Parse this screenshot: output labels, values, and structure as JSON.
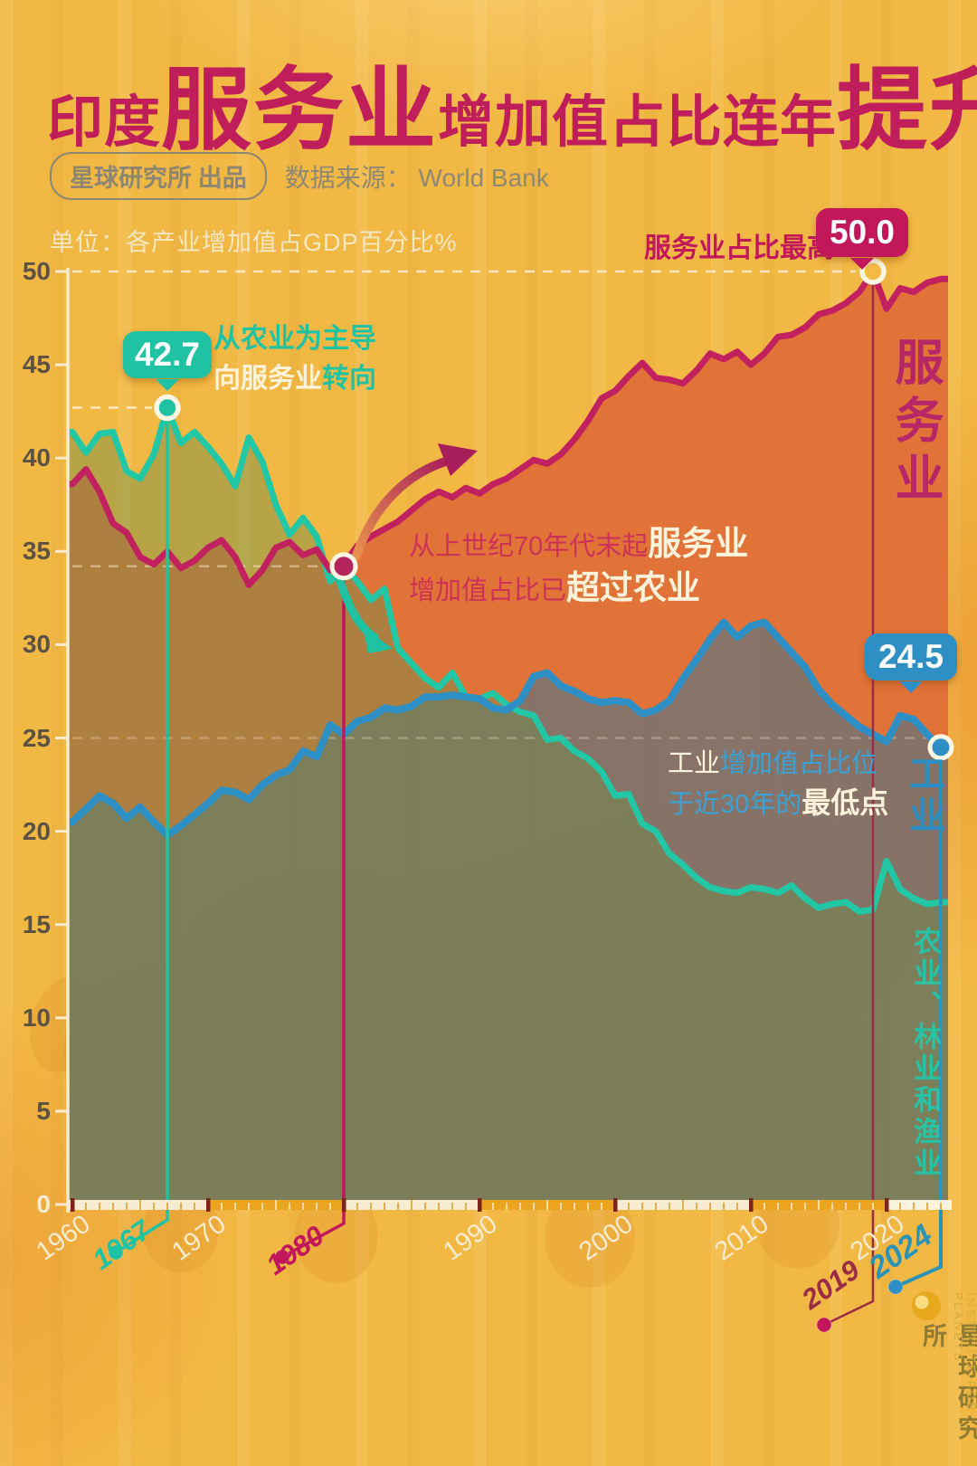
{
  "title": {
    "part1": "印度",
    "part2": "服务业",
    "part3": "增加值占比连年",
    "part4": "提升"
  },
  "header": {
    "badge": "星球研究所 出品",
    "source": "数据来源： World Bank"
  },
  "unit_label": "单位：各产业增加值占GDP百分比%",
  "colors": {
    "background": "#f2b844",
    "title": "#c01e5a",
    "services_line": "#c2215f",
    "services_fill": "rgba(223,109,55,0.92)",
    "industry_line": "#2e8fc5",
    "industry_fill": "rgba(62,115,144,0.55)",
    "agriculture_line": "#22c7a5",
    "agriculture_fill": "rgba(112,142,74,0.46)",
    "axis_cream": "#f7ecd2",
    "axis_amber": "#eaa41f",
    "axis_separator": "#7d2418",
    "label_dark": "#5b5244",
    "marker_2019": "#9b2c45",
    "marker_2024": "#2b93b5"
  },
  "chart_data": {
    "type": "area",
    "title": "印度服务业增加值占比连年提升",
    "ylabel": "各产业增加值占GDP百分比%",
    "ylim": [
      0,
      50
    ],
    "y_ticks": [
      0,
      5,
      10,
      15,
      20,
      25,
      30,
      35,
      40,
      45,
      50
    ],
    "x_tick_labels": [
      {
        "label": "1960",
        "year": 1960
      },
      {
        "label": "1970",
        "year": 1970
      },
      {
        "label": "1990",
        "year": 1990
      },
      {
        "label": "2000",
        "year": 2000
      },
      {
        "label": "2010",
        "year": 2010
      },
      {
        "label": "2020",
        "year": 2020
      }
    ],
    "years": [
      1960,
      1961,
      1962,
      1963,
      1964,
      1965,
      1966,
      1967,
      1968,
      1969,
      1970,
      1971,
      1972,
      1973,
      1974,
      1975,
      1976,
      1977,
      1978,
      1979,
      1980,
      1981,
      1982,
      1983,
      1984,
      1985,
      1986,
      1987,
      1988,
      1989,
      1990,
      1991,
      1992,
      1993,
      1994,
      1995,
      1996,
      1997,
      1998,
      1999,
      2000,
      2001,
      2002,
      2003,
      2004,
      2005,
      2006,
      2007,
      2008,
      2009,
      2010,
      2011,
      2012,
      2013,
      2014,
      2015,
      2016,
      2017,
      2018,
      2019,
      2020,
      2021,
      2022,
      2023,
      2024
    ],
    "series": [
      {
        "name": "服务业",
        "values": [
          38.6,
          39.4,
          38.2,
          36.5,
          36.0,
          34.7,
          34.3,
          35.0,
          34.1,
          34.5,
          35.2,
          35.6,
          34.7,
          33.2,
          34.0,
          35.2,
          35.5,
          34.8,
          35.1,
          34.0,
          34.3,
          35.3,
          35.8,
          36.2,
          36.6,
          37.2,
          37.8,
          38.2,
          37.9,
          38.4,
          38.1,
          38.6,
          38.9,
          39.4,
          39.9,
          39.7,
          40.2,
          41.0,
          42.0,
          43.2,
          43.6,
          44.4,
          45.1,
          44.3,
          44.2,
          44.0,
          44.7,
          45.6,
          45.3,
          45.7,
          45.0,
          45.6,
          46.5,
          46.6,
          47.0,
          47.7,
          47.9,
          48.3,
          48.9,
          50.0,
          48.0,
          49.1,
          48.9,
          49.4,
          49.6
        ]
      },
      {
        "name": "工业",
        "values": [
          20.5,
          21.2,
          21.9,
          21.5,
          20.7,
          21.3,
          20.5,
          19.8,
          20.3,
          20.9,
          21.5,
          22.2,
          22.1,
          21.7,
          22.5,
          23.0,
          23.3,
          24.3,
          24.0,
          25.7,
          25.2,
          25.9,
          26.1,
          26.6,
          26.5,
          26.7,
          27.2,
          27.2,
          27.3,
          27.2,
          27.1,
          26.6,
          26.5,
          27.0,
          28.3,
          28.5,
          27.8,
          27.5,
          27.1,
          26.9,
          27.0,
          26.9,
          26.3,
          26.5,
          27.0,
          28.2,
          29.2,
          30.3,
          31.2,
          30.4,
          31.0,
          31.2,
          30.4,
          29.6,
          28.8,
          27.6,
          26.8,
          26.2,
          25.6,
          25.2,
          24.8,
          26.2,
          26.0,
          25.2,
          24.5
        ]
      },
      {
        "name": "农业、林业和渔业",
        "values": [
          41.4,
          40.3,
          41.3,
          41.4,
          39.3,
          38.9,
          40.2,
          42.7,
          40.8,
          41.4,
          40.6,
          39.7,
          38.5,
          41.1,
          39.8,
          37.5,
          35.9,
          36.8,
          35.8,
          33.4,
          34.2,
          33.4,
          32.4,
          33.0,
          29.8,
          29.0,
          28.2,
          27.7,
          28.5,
          27.2,
          27.1,
          27.4,
          26.8,
          26.4,
          26.2,
          24.9,
          25.0,
          24.3,
          23.9,
          23.2,
          21.9,
          22.0,
          20.4,
          20.0,
          18.8,
          18.2,
          17.5,
          17.0,
          16.8,
          16.7,
          17.0,
          16.9,
          16.7,
          17.1,
          16.4,
          15.9,
          16.1,
          16.2,
          15.7,
          15.8,
          18.4,
          16.9,
          16.4,
          16.1,
          16.2
        ]
      }
    ],
    "legend_position": "right-inside-vertical",
    "grid": "dashed at 25, 42.7, 50"
  },
  "callouts": [
    {
      "id": "agri-peak",
      "label": "42.7",
      "year": 1967,
      "value": 42.7
    },
    {
      "id": "services-peak",
      "label": "50.0",
      "year": 2019,
      "value": 50.0
    },
    {
      "id": "industry-low",
      "label": "24.5",
      "year": 2024,
      "value": 24.5
    }
  ],
  "year_markers": [
    {
      "label": "1967"
    },
    {
      "label": "1980"
    },
    {
      "label": "2019"
    },
    {
      "label": "2024"
    }
  ],
  "notes": {
    "shift": {
      "l1": "从农业为主导",
      "l2a": "向服务业",
      "l2b": "转向"
    },
    "peak": {
      "text": "服务业占比最高"
    },
    "crossover": {
      "l1a": "从上世纪70年代末起",
      "l1b": "服务业",
      "l2a": "增加值占比已",
      "l2b": "超过农业"
    },
    "industry": {
      "l1a": "工业",
      "l1b": "增加值占比位",
      "l2a": "于近30年的",
      "l2b": "最低点"
    }
  },
  "series_labels": {
    "services": "服务业",
    "industry": "工业",
    "agriculture": "农业、林业和渔业"
  },
  "logo": {
    "name_cn": "星球研究所",
    "name_en": "INSTITUTE FOR PLANETS"
  }
}
